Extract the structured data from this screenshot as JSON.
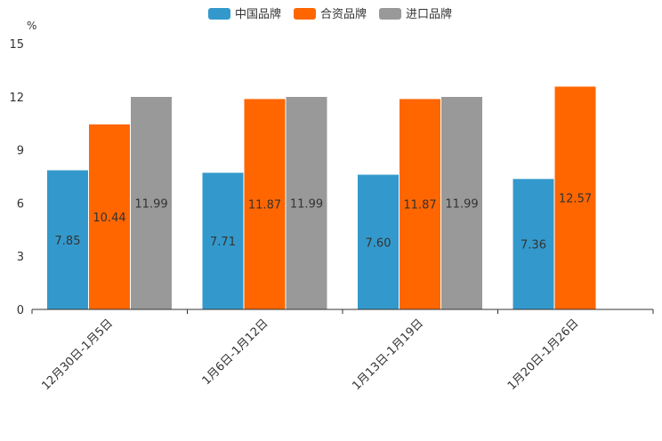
{
  "chart_data": {
    "type": "bar",
    "title": "",
    "xlabel": "",
    "ylabel": "%",
    "ylim": [
      0,
      15
    ],
    "yticks": [
      0,
      3,
      6,
      9,
      12,
      15
    ],
    "grid": false,
    "legend_position": "top-center",
    "categories": [
      "12月30日-1月5日",
      "1月6日-1月12日",
      "1月13日-1月19日",
      "1月20日-1月26日"
    ],
    "series": [
      {
        "name": "中国品牌",
        "color": "#3399cc",
        "values": [
          7.85,
          7.71,
          7.6,
          7.36
        ]
      },
      {
        "name": "合资品牌",
        "color": "#ff6600",
        "values": [
          10.44,
          11.87,
          11.87,
          12.57
        ]
      },
      {
        "name": "进口品牌",
        "color": "#999999",
        "values": [
          11.99,
          11.99,
          11.99,
          null
        ]
      }
    ]
  }
}
